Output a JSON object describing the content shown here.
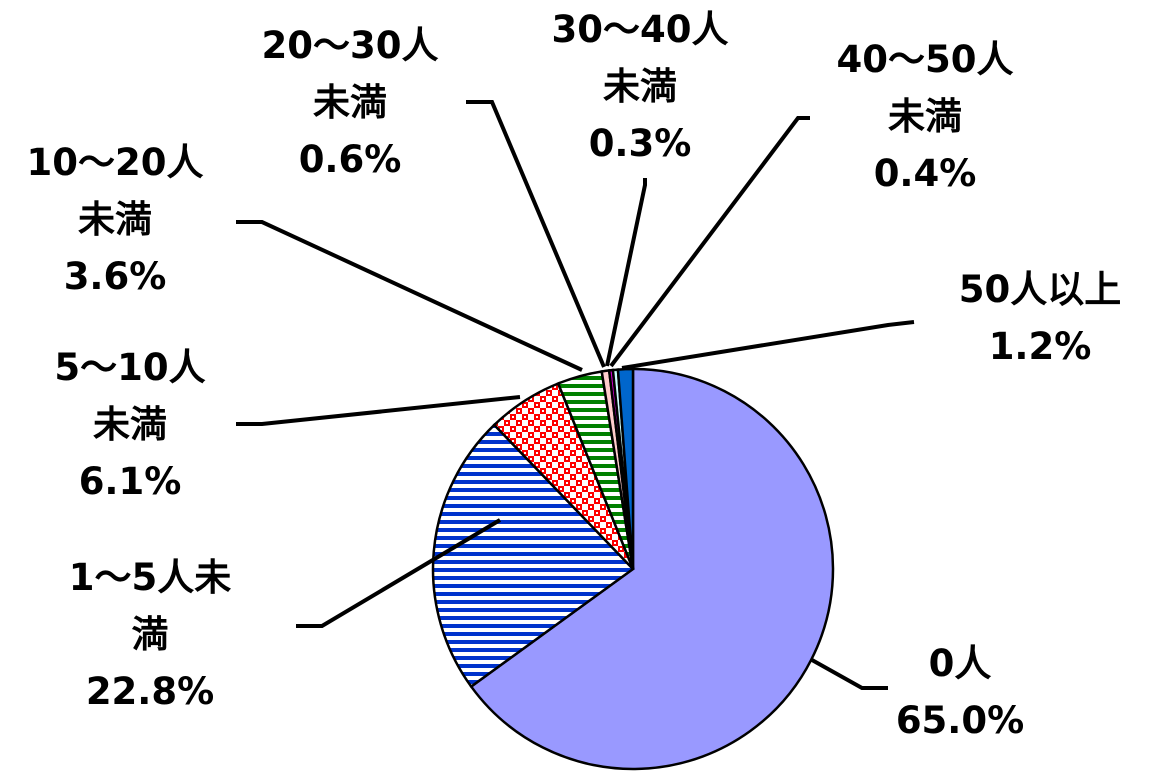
{
  "chart_data": {
    "type": "pie",
    "title": "",
    "start": "top, clockwise",
    "slices": [
      {
        "name": "0人",
        "label_lines": [
          "0人"
        ],
        "value": 65.0,
        "value_label": "65.0%",
        "color": "#9999ff",
        "pattern": "solid"
      },
      {
        "name": "1～5人未満",
        "label_lines": [
          "1～5人未",
          "満"
        ],
        "value": 22.8,
        "value_label": "22.8%",
        "color": "#0033cc",
        "pattern": "horizontal-stripes"
      },
      {
        "name": "5～10人未満",
        "label_lines": [
          "5～10人",
          "未満"
        ],
        "value": 6.1,
        "value_label": "6.1%",
        "color": "#ff0000",
        "pattern": "checker"
      },
      {
        "name": "10～20人未満",
        "label_lines": [
          "10～20人",
          "未満"
        ],
        "value": 3.6,
        "value_label": "3.6%",
        "color": "#008000",
        "pattern": "horizontal-stripes"
      },
      {
        "name": "20～30人未満",
        "label_lines": [
          "20～30人",
          "未満"
        ],
        "value": 0.6,
        "value_label": "0.6%",
        "color": "#ffcccc",
        "pattern": "solid"
      },
      {
        "name": "30～40人未満",
        "label_lines": [
          "30～40人",
          "未満"
        ],
        "value": 0.3,
        "value_label": "0.3%",
        "color": "#cc00cc",
        "pattern": "solid"
      },
      {
        "name": "40～50人未満",
        "label_lines": [
          "40～50人",
          "未満"
        ],
        "value": 0.4,
        "value_label": "0.4%",
        "color": "#ccffff",
        "pattern": "solid"
      },
      {
        "name": "50人以上",
        "label_lines": [
          "50人以上"
        ],
        "value": 1.2,
        "value_label": "1.2%",
        "color": "#0066cc",
        "pattern": "solid"
      }
    ]
  }
}
